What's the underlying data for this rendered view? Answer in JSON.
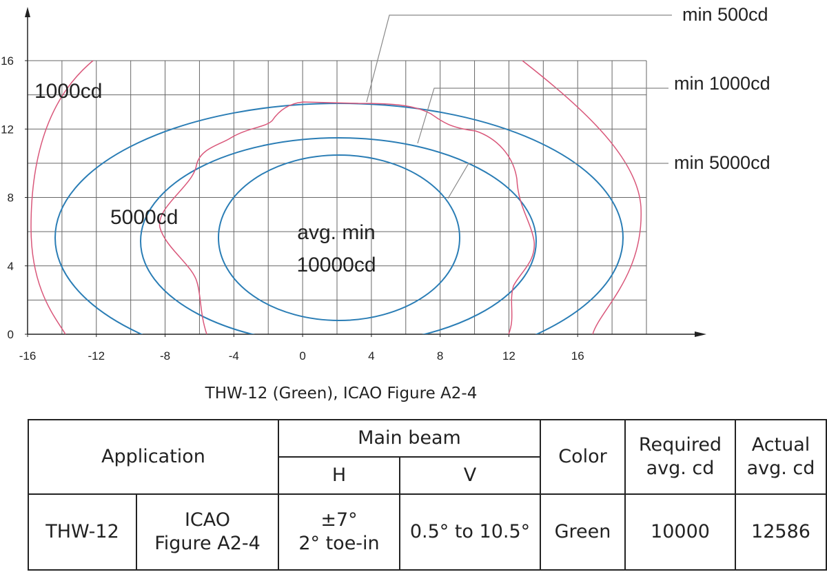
{
  "figure": {
    "xlim": [
      -16,
      20
    ],
    "ylim": [
      0,
      16
    ],
    "xticks": [
      -16,
      -12,
      -8,
      -4,
      0,
      4,
      8,
      12,
      16
    ],
    "yticks": [
      0,
      4,
      8,
      12,
      16
    ],
    "callouts": [
      "min 500cd",
      "min 1000cd",
      "min 5000cd"
    ],
    "zone_labels": {
      "outer": "1000cd",
      "middle": "5000cd",
      "inner": [
        "avg. min",
        "10000cd"
      ]
    },
    "caption": "THW-12 (Green), ICAO Figure A2-4"
  },
  "table": {
    "header": {
      "application": "Application",
      "main_beam": "Main beam",
      "h": "H",
      "v": "V",
      "color": "Color",
      "required": [
        "Required",
        "avg. cd"
      ],
      "actual": [
        "Actual",
        "avg. cd"
      ]
    },
    "row": {
      "name": "THW-12",
      "figure": [
        "ICAO",
        "Figure A2-4"
      ],
      "h": [
        "±7°",
        "2° toe-in"
      ],
      "v": "0.5° to 10.5°",
      "color": "Green",
      "required": 10000,
      "actual": 12586
    }
  }
}
